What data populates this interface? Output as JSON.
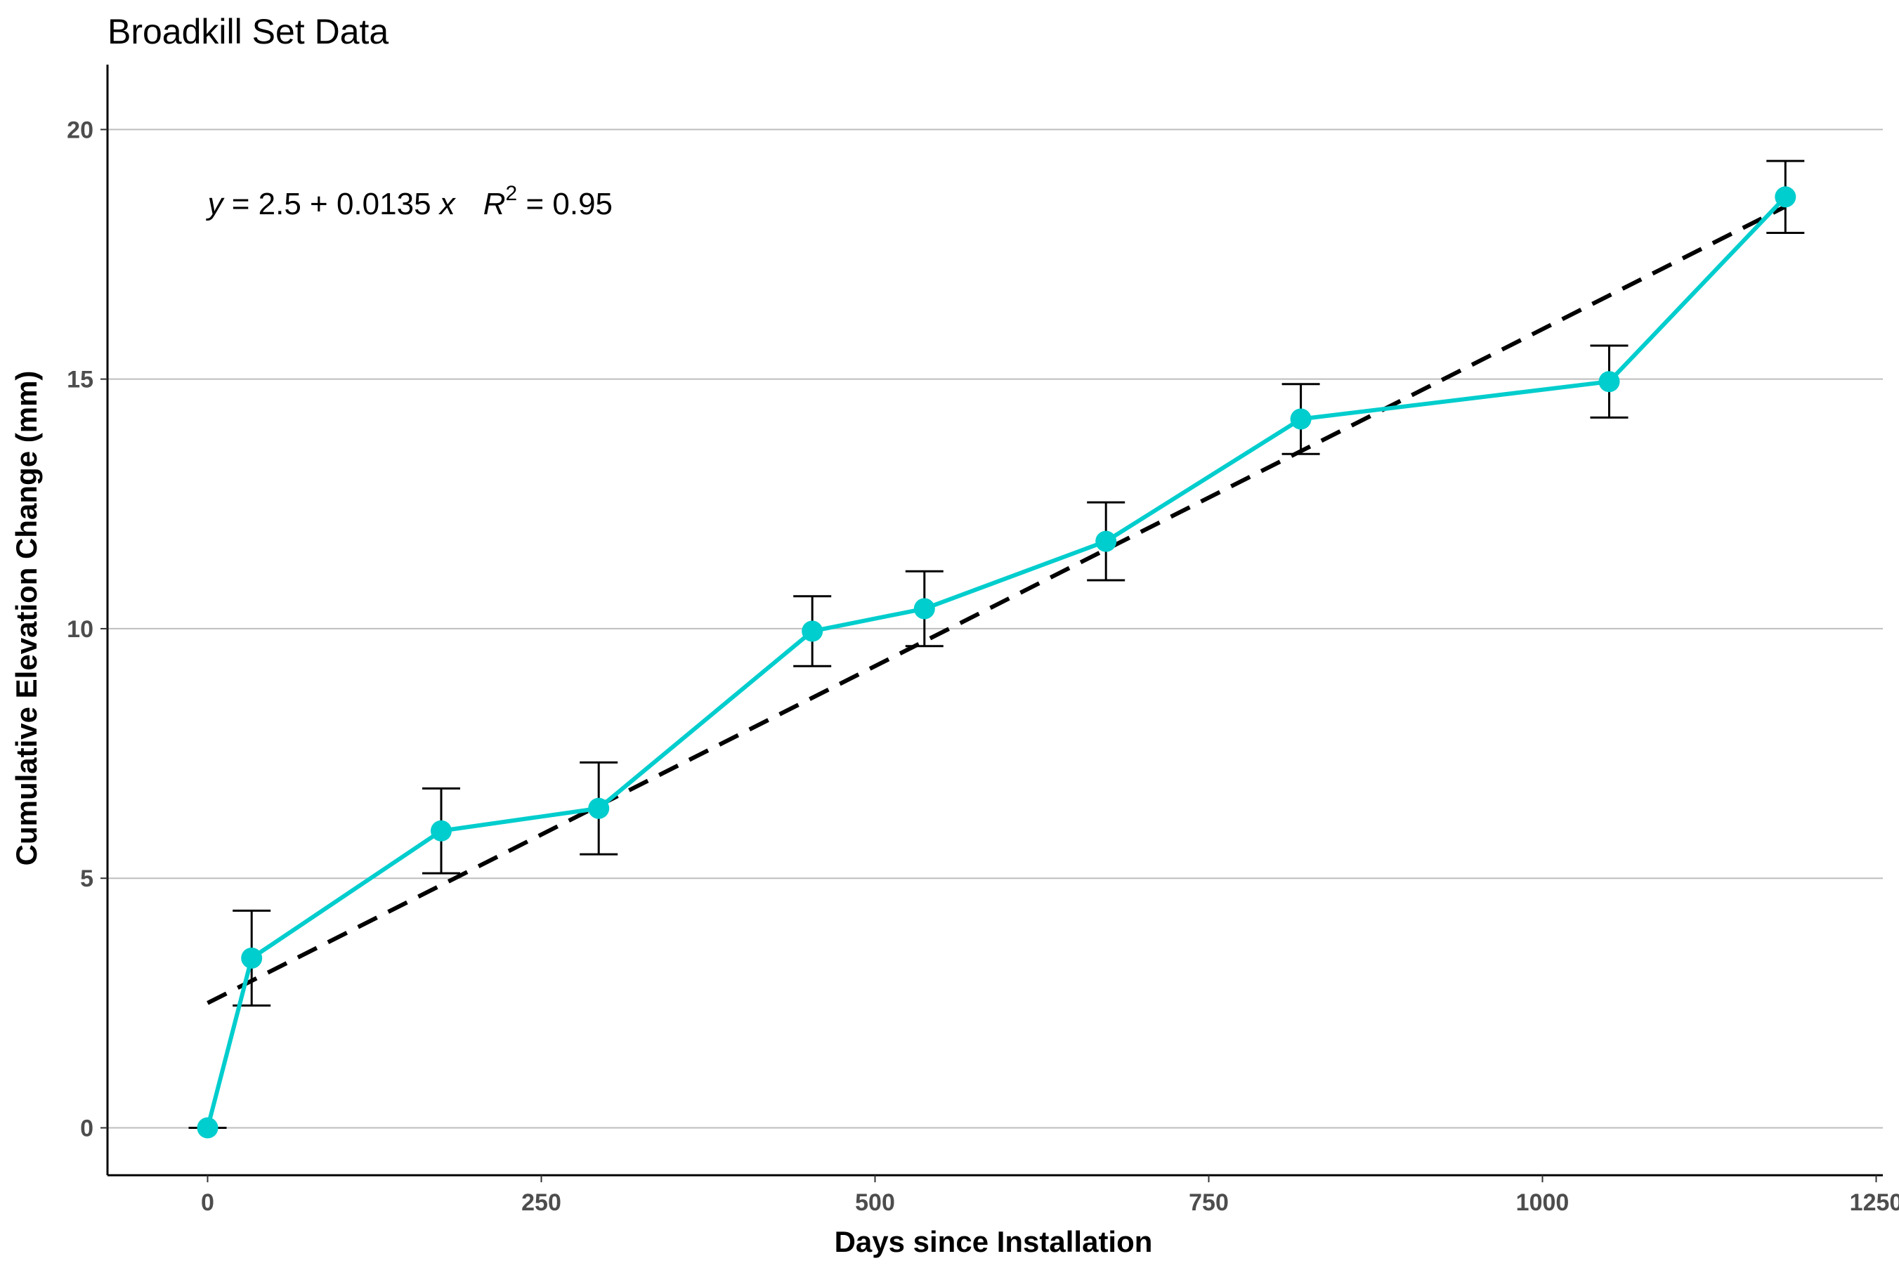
{
  "chart_data": {
    "type": "line",
    "title": "Broadkill Set Data",
    "xlabel": "Days since Installation",
    "ylabel": "Cumulative Elevation Change (mm)",
    "xlim": [
      -75,
      1255
    ],
    "ylim": [
      -0.95,
      21.3
    ],
    "x_ticks": [
      0,
      250,
      500,
      750,
      1000,
      1250
    ],
    "y_ticks": [
      0,
      5,
      10,
      15,
      20
    ],
    "grid": "horizontal major",
    "legend": "none",
    "series": [
      {
        "x": [
          0,
          33,
          175,
          293,
          453,
          537,
          673,
          819,
          1050,
          1182
        ],
        "y": [
          0,
          3.4,
          5.95,
          6.4,
          9.95,
          10.4,
          11.75,
          14.2,
          14.95,
          18.65
        ],
        "error": [
          0,
          0.95,
          0.85,
          0.92,
          0.7,
          0.75,
          0.78,
          0.7,
          0.72,
          0.72
        ],
        "color": "#00CDCD"
      }
    ],
    "fit_line": {
      "intercept": 2.5,
      "slope": 0.0135,
      "r2": 0.95,
      "x_range": [
        0,
        1182
      ],
      "color": "#000000",
      "style": "dashed"
    },
    "annotation": {
      "y_var": "y",
      "equation": " = 2.5 + 0.0135 ",
      "x_var": "x",
      "r_var": "R",
      "r_exp": "2",
      "r_value": " = 0.95",
      "anchor": {
        "x": 0,
        "y": 18.5
      }
    }
  }
}
